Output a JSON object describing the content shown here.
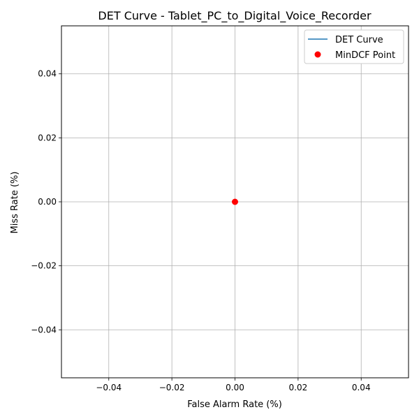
{
  "chart_data": {
    "type": "line",
    "title": "DET Curve - Tablet_PC_to_Digital_Voice_Recorder",
    "xlabel": "False Alarm Rate (%)",
    "ylabel": "Miss Rate (%)",
    "xlim": [
      -0.055,
      0.055
    ],
    "ylim": [
      -0.055,
      0.055
    ],
    "xticks": [
      -0.04,
      -0.02,
      0.0,
      0.02,
      0.04
    ],
    "yticks": [
      -0.04,
      -0.02,
      0.0,
      0.02,
      0.04
    ],
    "xtick_labels": [
      "−0.04",
      "−0.02",
      "0.00",
      "0.02",
      "0.04"
    ],
    "ytick_labels": [
      "−0.04",
      "−0.02",
      "0.00",
      "0.02",
      "0.04"
    ],
    "grid": true,
    "legend_position": "top-right",
    "series": [
      {
        "name": "DET Curve",
        "kind": "line",
        "color": "#1f77b4",
        "x": [
          0.0
        ],
        "y": [
          0.0
        ]
      },
      {
        "name": "MinDCF Point",
        "kind": "scatter",
        "color": "#ff0000",
        "x": [
          0.0
        ],
        "y": [
          0.0
        ]
      }
    ]
  }
}
